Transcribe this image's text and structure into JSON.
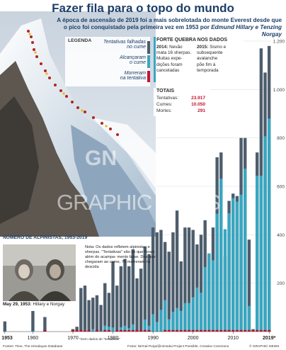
{
  "header": {
    "title": "Fazer fila para o topo do mundo",
    "subtitle_line1": "A época de ascensão de 2019 foi a mais sobrelotada do monte Everest desde que",
    "subtitle_line2_prefix": "o pico foi conquistado pela primeira vez em 1953 por ",
    "subtitle_names": "Edmund Hillary e Tenzing Norgay"
  },
  "legend": {
    "title": "LEGENDA",
    "items": [
      {
        "label_l1": "Tentativas falhadas",
        "label_l2": "no cume",
        "color": "#4d5d6c"
      },
      {
        "label_l1": "Alcançaram",
        "label_l2": "o cume",
        "color": "#3aa6c0"
      },
      {
        "label_l1": "Morreram",
        "label_l2": "na tentativa",
        "color": "#c4122f"
      }
    ]
  },
  "data_break": {
    "title": "FORTE QUEBRA NOS DADOS",
    "y2014": "2014:",
    "y2014_text": [
      "Nevão",
      "mata 16 sherpas.",
      "Muitas expe-",
      "dições foram",
      "canceladas"
    ],
    "y2015": "2015:",
    "y2015_text": [
      "Sismo e",
      "subsequente",
      "avalanche",
      "põe fim à",
      "temporada"
    ]
  },
  "totals": {
    "title": "TOTAIS",
    "rows": [
      {
        "label": "Tentativas:",
        "value": "23.917"
      },
      {
        "label": "Cumes:",
        "value": "10.050"
      },
      {
        "label": "Mortes:",
        "value": "291"
      }
    ]
  },
  "climbers_title": "NÚMERO DE ALPINISTAS, 1953-2019",
  "note": "Nota: Os dados refletem alpinistas e sherpas. \"Tentativas\" são os que foram além do acampa- mento base. Dos que chegaram ao cume, 76 morreram na descida",
  "photo_caption_date": "May 29, 1953:",
  "photo_caption_text": " Hillary e Norgay",
  "watermark_logo": "GN",
  "watermark_text": "GRAPHIC NEWS",
  "footnote_nodata": "*Sem dados de \"tentativas\"",
  "sources_left": "Fontes: Time, The Himalayan Database",
  "sources_right": "Fotos: Nirmal Purja/@nimsdai Project Possible, Creative Commons",
  "copyright": "© GRAPHIC NEWS",
  "chart_data": {
    "type": "bar",
    "title": "Fazer fila para o topo do mundo",
    "x_tick_labels": [
      "1953",
      "1960",
      "1970",
      "1980",
      "1990",
      "2000",
      "2010",
      "2019*"
    ],
    "y_tick_labels": [
      "200",
      "400",
      "600",
      "800",
      "1.000",
      "1.200"
    ],
    "ylim": [
      0,
      1200
    ],
    "colors": {
      "attempts": "#4d5d6c",
      "summits": "#3aa6c0",
      "deaths": "#c4122f"
    },
    "years": [
      1953,
      1954,
      1955,
      1956,
      1957,
      1958,
      1959,
      1960,
      1961,
      1962,
      1963,
      1964,
      1965,
      1966,
      1967,
      1968,
      1969,
      1970,
      1971,
      1972,
      1973,
      1974,
      1975,
      1976,
      1977,
      1978,
      1979,
      1980,
      1981,
      1982,
      1983,
      1984,
      1985,
      1986,
      1987,
      1988,
      1989,
      1990,
      1991,
      1992,
      1993,
      1994,
      1995,
      1996,
      1997,
      1998,
      1999,
      2000,
      2001,
      2002,
      2003,
      2004,
      2005,
      2006,
      2007,
      2008,
      2009,
      2010,
      2011,
      2012,
      2013,
      2014,
      2015,
      2016,
      2017,
      2018,
      2019
    ],
    "attempts": [
      42,
      0,
      0,
      0,
      0,
      0,
      0,
      85,
      0,
      0,
      60,
      0,
      0,
      0,
      0,
      0,
      0,
      10,
      20,
      180,
      190,
      130,
      140,
      150,
      110,
      200,
      160,
      290,
      190,
      270,
      300,
      270,
      340,
      220,
      260,
      350,
      320,
      430,
      410,
      420,
      370,
      330,
      410,
      500,
      290,
      430,
      430,
      420,
      360,
      400,
      460,
      320,
      430,
      720,
      740,
      310,
      540,
      570,
      560,
      800,
      800,
      380,
      10,
      740,
      1170,
      1070,
      1180
    ],
    "summits": [
      2,
      0,
      0,
      0,
      0,
      0,
      0,
      3,
      0,
      0,
      6,
      0,
      0,
      0,
      0,
      0,
      0,
      4,
      0,
      0,
      8,
      0,
      10,
      4,
      2,
      25,
      20,
      17,
      6,
      18,
      24,
      14,
      30,
      6,
      4,
      50,
      24,
      72,
      40,
      90,
      130,
      51,
      82,
      98,
      86,
      118,
      118,
      142,
      182,
      161,
      267,
      323,
      295,
      487,
      632,
      423,
      489,
      551,
      537,
      566,
      673,
      106,
      0,
      644,
      644,
      807,
      880
    ],
    "deaths": [
      0,
      0,
      0,
      0,
      0,
      0,
      0,
      0,
      0,
      0,
      1,
      0,
      0,
      0,
      0,
      0,
      0,
      8,
      1,
      3,
      4,
      4,
      0,
      1,
      0,
      1,
      3,
      0,
      1,
      3,
      4,
      2,
      1,
      4,
      1,
      2,
      8,
      0,
      0,
      0,
      8,
      3,
      4,
      15,
      8,
      5,
      2,
      5,
      3,
      2,
      4,
      7,
      3,
      11,
      6,
      2,
      5,
      4,
      6,
      10,
      8,
      17,
      1,
      6,
      7,
      5,
      11
    ],
    "no_attempt_data_years": [
      1953,
      1960,
      1963
    ]
  }
}
